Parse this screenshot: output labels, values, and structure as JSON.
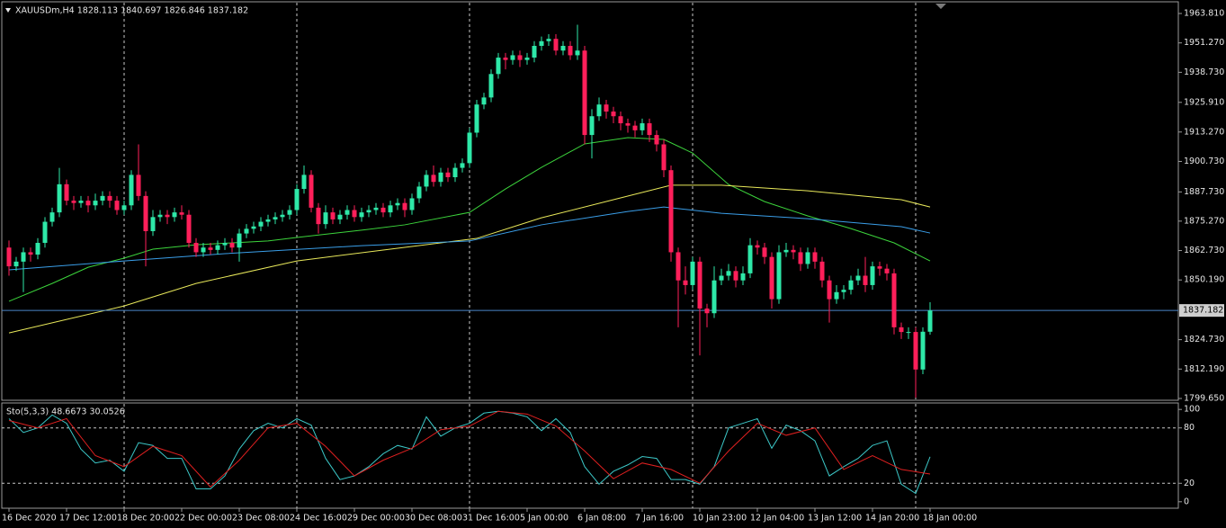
{
  "chart_data": [
    {
      "type": "candlestick",
      "title": "XAUUSDm,H4  1828.113 1840.697 1826.846 1837.182",
      "up_color": "#2ee8a8",
      "down_color": "#ff1f5a",
      "price_line_color": "#4a86c8",
      "categories": [
        "16 Dec 2020",
        null,
        null,
        null,
        null,
        null,
        null,
        null,
        "17 Dec 12:00",
        null,
        null,
        null,
        null,
        null,
        null,
        null,
        "18 Dec 20:00",
        null,
        null,
        null,
        null,
        null,
        null,
        null,
        "22 Dec 00:00",
        null,
        null,
        null,
        null,
        null,
        null,
        null,
        "23 Dec 08:00",
        null,
        null,
        null,
        null,
        null,
        null,
        null,
        "24 Dec 16:00",
        null,
        null,
        null,
        null,
        null,
        null,
        null,
        "29 Dec 00:00",
        null,
        null,
        null,
        null,
        null,
        null,
        null,
        "30 Dec 08:00",
        null,
        null,
        null,
        null,
        null,
        null,
        null,
        "31 Dec 16:00",
        null,
        null,
        null,
        null,
        null,
        null,
        null,
        "5 Jan 00:00",
        null,
        null,
        null,
        null,
        null,
        null,
        null,
        "6 Jan 08:00",
        null,
        null,
        null,
        null,
        null,
        null,
        null,
        "7 Jan 16:00",
        null,
        null,
        null,
        null,
        null,
        null,
        null,
        "10 Jan 23:00",
        null,
        null,
        null,
        null,
        null,
        null,
        null,
        "12 Jan 04:00",
        null,
        null,
        null,
        null,
        null,
        null,
        null,
        "13 Jan 12:00",
        null,
        null,
        null,
        null,
        null,
        null,
        null,
        "14 Jan 20:00",
        null,
        null,
        null,
        null,
        null,
        null,
        null,
        "18 Jan 00:00"
      ],
      "open": [
        1864,
        1856,
        1858,
        1862,
        1861,
        1866,
        1875,
        1879,
        1891,
        1884,
        1883,
        1884,
        1882,
        1884,
        1886,
        1884,
        1880,
        1882,
        1895,
        1886,
        1871,
        1877,
        1878,
        1877,
        1879,
        1878,
        1866,
        1862,
        1864,
        1863,
        1865,
        1866,
        1864,
        1870,
        1872,
        1873,
        1875,
        1876,
        1877,
        1878,
        1880,
        1889,
        1895,
        1881,
        1874,
        1879,
        1876,
        1878,
        1880,
        1877,
        1879,
        1880,
        1881,
        1879,
        1882,
        1883,
        1880,
        1885,
        1890,
        1895,
        1892,
        1896,
        1894,
        1898,
        1900,
        1913,
        1925,
        1928,
        1938,
        1945,
        1944,
        1946,
        1944,
        1945,
        1950,
        1952,
        1953,
        1948,
        1950,
        1946,
        1948,
        1912,
        1920,
        1925,
        1922,
        1920,
        1917,
        1916,
        1914,
        1917,
        1912,
        1908,
        1897,
        1862,
        1850,
        1848,
        1858,
        1838,
        1836,
        1850,
        1852,
        1854,
        1850,
        1853,
        1865,
        1864,
        1860,
        1842,
        1862,
        1863,
        1862,
        1857,
        1862,
        1858,
        1850,
        1842,
        1845,
        1846,
        1850,
        1852,
        1848,
        1856,
        1855,
        1853,
        1830,
        1828,
        1828,
        1812,
        1828.113
      ],
      "high": [
        1867,
        1860,
        1864,
        1864,
        1868,
        1877,
        1881,
        1898,
        1893,
        1886,
        1886,
        1886,
        1887,
        1888,
        1888,
        1886,
        1884,
        1897,
        1908,
        1888,
        1880,
        1880,
        1880,
        1881,
        1882,
        1880,
        1868,
        1866,
        1866,
        1867,
        1868,
        1868,
        1872,
        1874,
        1875,
        1877,
        1878,
        1879,
        1880,
        1882,
        1891,
        1899,
        1897,
        1883,
        1882,
        1881,
        1880,
        1882,
        1882,
        1881,
        1882,
        1883,
        1883,
        1884,
        1885,
        1885,
        1887,
        1892,
        1897,
        1899,
        1898,
        1898,
        1900,
        1902,
        1915,
        1927,
        1930,
        1940,
        1947,
        1947,
        1948,
        1948,
        1947,
        1952,
        1954,
        1955,
        1955,
        1952,
        1952,
        1959,
        1950,
        1923,
        1928,
        1927,
        1924,
        1922,
        1919,
        1918,
        1919,
        1919,
        1914,
        1910,
        1899,
        1864,
        1856,
        1860,
        1860,
        1840,
        1856,
        1855,
        1857,
        1856,
        1856,
        1868,
        1867,
        1866,
        1862,
        1865,
        1866,
        1865,
        1864,
        1864,
        1864,
        1860,
        1852,
        1848,
        1848,
        1852,
        1855,
        1860,
        1858,
        1858,
        1857,
        1855,
        1832,
        1830,
        1830,
        1830,
        1840.697
      ],
      "low": [
        1852,
        1854,
        1845,
        1858,
        1859,
        1864,
        1873,
        1877,
        1882,
        1880,
        1881,
        1879,
        1880,
        1882,
        1881,
        1878,
        1878,
        1880,
        1884,
        1856,
        1869,
        1875,
        1874,
        1875,
        1876,
        1864,
        1860,
        1860,
        1861,
        1861,
        1863,
        1862,
        1858,
        1868,
        1870,
        1871,
        1873,
        1874,
        1875,
        1876,
        1878,
        1887,
        1879,
        1870,
        1872,
        1874,
        1874,
        1876,
        1875,
        1875,
        1877,
        1878,
        1877,
        1877,
        1880,
        1877,
        1878,
        1883,
        1888,
        1890,
        1890,
        1892,
        1892,
        1896,
        1898,
        1911,
        1923,
        1926,
        1936,
        1940,
        1942,
        1941,
        1942,
        1943,
        1948,
        1950,
        1946,
        1946,
        1944,
        1944,
        1908,
        1902,
        1918,
        1919,
        1917,
        1914,
        1913,
        1911,
        1912,
        1909,
        1905,
        1894,
        1858,
        1830,
        1844,
        1846,
        1818,
        1830,
        1834,
        1848,
        1850,
        1847,
        1848,
        1851,
        1861,
        1857,
        1838,
        1840,
        1860,
        1859,
        1854,
        1855,
        1855,
        1847,
        1832,
        1840,
        1842,
        1844,
        1848,
        1845,
        1846,
        1852,
        1850,
        1827,
        1825,
        1825,
        1800,
        1810,
        1826.846
      ],
      "close": [
        1856,
        1858,
        1862,
        1861,
        1866,
        1875,
        1879,
        1891,
        1884,
        1883,
        1884,
        1882,
        1884,
        1886,
        1884,
        1880,
        1882,
        1895,
        1886,
        1871,
        1877,
        1878,
        1877,
        1879,
        1878,
        1866,
        1862,
        1864,
        1863,
        1865,
        1866,
        1864,
        1870,
        1872,
        1873,
        1875,
        1876,
        1877,
        1878,
        1880,
        1889,
        1895,
        1881,
        1874,
        1879,
        1876,
        1878,
        1880,
        1877,
        1879,
        1880,
        1881,
        1879,
        1882,
        1883,
        1880,
        1885,
        1890,
        1895,
        1892,
        1896,
        1894,
        1898,
        1900,
        1913,
        1925,
        1928,
        1938,
        1945,
        1944,
        1946,
        1944,
        1945,
        1950,
        1952,
        1953,
        1948,
        1950,
        1946,
        1948,
        1912,
        1920,
        1925,
        1922,
        1920,
        1917,
        1916,
        1914,
        1917,
        1912,
        1908,
        1897,
        1862,
        1850,
        1848,
        1858,
        1838,
        1836,
        1850,
        1852,
        1854,
        1850,
        1853,
        1865,
        1864,
        1860,
        1842,
        1862,
        1863,
        1862,
        1857,
        1862,
        1858,
        1850,
        1842,
        1845,
        1846,
        1850,
        1852,
        1848,
        1856,
        1855,
        1853,
        1830,
        1828,
        1828,
        1812,
        1828.113,
        1837.182
      ],
      "series": [
        {
          "color": "#3cd43c",
          "x": [
            0,
            6,
            11,
            16,
            20,
            26,
            36,
            40,
            49,
            55,
            64,
            69,
            74,
            80,
            86,
            91,
            95,
            100,
            105,
            111,
            117,
            123,
            128
          ],
          "values": [
            1841.1,
            1848.7,
            1855.6,
            1859.5,
            1863.3,
            1865.2,
            1866.8,
            1868.3,
            1871.4,
            1873.7,
            1879.0,
            1889.0,
            1898.2,
            1908.2,
            1910.9,
            1910.1,
            1904.3,
            1890.9,
            1883.6,
            1877.5,
            1872.1,
            1866.0,
            1858.3
          ]
        },
        {
          "color": "#e8e85a",
          "x": [
            0,
            16,
            26,
            40,
            55,
            65,
            74,
            84,
            92,
            99,
            111,
            124,
            128
          ],
          "values": [
            1827.6,
            1839.1,
            1848.7,
            1858.3,
            1864.1,
            1867.9,
            1876.7,
            1884.4,
            1890.6,
            1890.6,
            1888.2,
            1884.4,
            1881.3
          ]
        },
        {
          "color": "#3a9ee8",
          "x": [
            0,
            16,
            30,
            49,
            64,
            74,
            86,
            91,
            99,
            111,
            124,
            128
          ],
          "values": [
            1854.5,
            1858.3,
            1861.4,
            1864.8,
            1866.8,
            1873.7,
            1879.4,
            1881.3,
            1878.6,
            1876.3,
            1872.9,
            1870.2
          ]
        }
      ],
      "ylim": [
        1799.65,
        1963.81
      ],
      "yticks": [
        {
          "value": 1963.81,
          "label": "1963.810"
        },
        {
          "value": 1951.27,
          "label": "1951.270"
        },
        {
          "value": 1938.73,
          "label": "1938.730"
        },
        {
          "value": 1925.91,
          "label": "1925.910"
        },
        {
          "value": 1913.27,
          "label": "1913.270"
        },
        {
          "value": 1900.73,
          "label": "1900.730"
        },
        {
          "value": 1887.73,
          "label": "1887.730"
        },
        {
          "value": 1875.27,
          "label": "1875.270"
        },
        {
          "value": 1862.73,
          "label": "1862.730"
        },
        {
          "value": 1850.19,
          "label": "1850.190"
        },
        {
          "value": 1824.73,
          "label": "1824.730"
        },
        {
          "value": 1812.19,
          "label": "1812.190"
        },
        {
          "value": 1799.65,
          "label": "1799.650"
        }
      ],
      "xgrid": [
        16,
        40,
        64,
        95,
        126
      ]
    },
    {
      "type": "line",
      "title": "Sto(5,3,3) 48.6673 30.0526",
      "series": [
        {
          "color": "#3cc8c8",
          "x": [
            0,
            2,
            4,
            6,
            8,
            10,
            12,
            14,
            16,
            18,
            20,
            22,
            24,
            26,
            28,
            30,
            32,
            34,
            36,
            38,
            40,
            42,
            44,
            46,
            48,
            50,
            52,
            54,
            56,
            58,
            60,
            62,
            64,
            66,
            68,
            70,
            72,
            74,
            76,
            78,
            80,
            82,
            84,
            86,
            88,
            90,
            92,
            94,
            96,
            98,
            100,
            102,
            104,
            106,
            108,
            110,
            112,
            114,
            116,
            118,
            120,
            122,
            124,
            126,
            128
          ],
          "values": [
            90,
            75,
            80,
            94,
            85,
            57,
            42,
            45,
            33,
            64,
            61,
            47,
            47,
            14,
            14,
            28,
            57,
            77,
            85,
            80,
            90,
            83,
            47,
            24,
            28,
            38,
            52,
            61,
            57,
            92,
            71,
            80,
            85,
            96,
            98,
            96,
            92,
            77,
            90,
            75,
            38,
            19,
            33,
            40,
            49,
            47,
            24,
            24,
            19,
            38,
            80,
            85,
            90,
            58,
            83,
            77,
            66,
            28,
            38,
            47,
            61,
            66,
            19,
            9,
            48.6673
          ]
        },
        {
          "color": "#e02020",
          "x": [
            0,
            4,
            8,
            12,
            16,
            20,
            24,
            28,
            32,
            36,
            40,
            44,
            48,
            52,
            56,
            60,
            64,
            68,
            72,
            76,
            80,
            84,
            88,
            92,
            96,
            100,
            104,
            108,
            112,
            116,
            120,
            124,
            128
          ],
          "values": [
            88,
            80,
            90,
            50,
            38,
            60,
            50,
            16,
            45,
            80,
            85,
            60,
            28,
            45,
            58,
            78,
            82,
            98,
            95,
            82,
            55,
            25,
            42,
            35,
            20,
            55,
            85,
            72,
            80,
            35,
            50,
            35,
            30.0526
          ]
        }
      ],
      "ylim": [
        -7,
        107
      ],
      "yticks": [
        100,
        80,
        20,
        0
      ],
      "levels": [
        20,
        80
      ]
    }
  ]
}
